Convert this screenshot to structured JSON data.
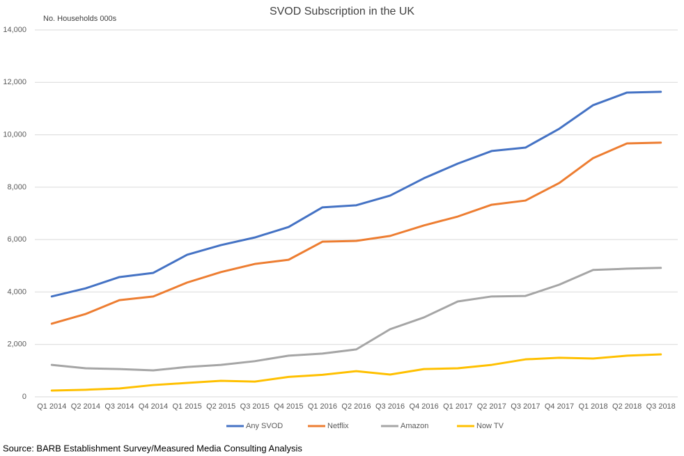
{
  "chart_data": {
    "type": "line",
    "title": "SVOD Subscription in the UK",
    "y_axis_label": "No. Households 000s",
    "source": "Source:  BARB Establishment Survey/Measured Media Consulting Analysis",
    "categories": [
      "Q1 2014",
      "Q2 2014",
      "Q3 2014",
      "Q4 2014",
      "Q1 2015",
      "Q2 2015",
      "Q3 2015",
      "Q4 2015",
      "Q1 2016",
      "Q2 2016",
      "Q3 2016",
      "Q4 2016",
      "Q1 2017",
      "Q2 2017",
      "Q3 2017",
      "Q4 2017",
      "Q1 2018",
      "Q2 2018",
      "Q3 2018"
    ],
    "series": [
      {
        "name": "Any SVOD",
        "color": "#4472c4",
        "values": [
          3830,
          4140,
          4570,
          4730,
          5420,
          5790,
          6080,
          6480,
          7230,
          7310,
          7680,
          8340,
          8900,
          9380,
          9510,
          10230,
          11130,
          11610,
          11640
        ]
      },
      {
        "name": "Netflix",
        "color": "#ed7d31",
        "values": [
          2790,
          3160,
          3690,
          3830,
          4360,
          4760,
          5070,
          5230,
          5920,
          5950,
          6140,
          6540,
          6880,
          7330,
          7490,
          8160,
          9110,
          9670,
          9700
        ]
      },
      {
        "name": "Amazon",
        "color": "#a5a5a5",
        "values": [
          1220,
          1090,
          1060,
          1010,
          1140,
          1220,
          1360,
          1570,
          1650,
          1810,
          2580,
          3030,
          3640,
          3830,
          3850,
          4280,
          4840,
          4890,
          4920
        ]
      },
      {
        "name": "Now TV",
        "color": "#ffc000",
        "values": [
          240,
          270,
          320,
          450,
          530,
          610,
          580,
          760,
          840,
          980,
          850,
          1060,
          1090,
          1220,
          1430,
          1490,
          1460,
          1570,
          1620
        ]
      }
    ],
    "ylim": [
      0,
      14000
    ],
    "yticks": [
      0,
      {
        "value": 2000,
        "label": "2,000"
      },
      {
        "value": 4000,
        "label": "4,000"
      },
      {
        "value": 6000,
        "label": "6,000"
      },
      {
        "value": 8000,
        "label": "8,000"
      },
      {
        "value": 10000,
        "label": "10,000"
      },
      {
        "value": 12000,
        "label": "12,000"
      },
      {
        "value": 14000,
        "label": "14,000"
      }
    ],
    "grid": true,
    "legend": "bottom"
  }
}
